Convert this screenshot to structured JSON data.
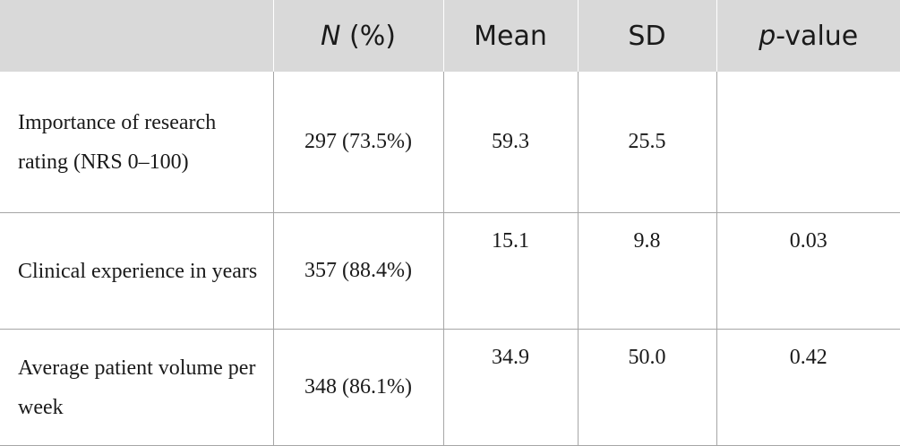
{
  "table": {
    "headers": {
      "col0": "",
      "col1_italic": "N",
      "col1_rest": " (%)",
      "col2": "Mean",
      "col3": "SD",
      "col4_italic": "p",
      "col4_rest": "-value"
    },
    "rows": [
      {
        "label": "Importance of research rating (NRS 0–100)",
        "n_pct": "297 (73.5%)",
        "mean": "59.3",
        "sd": "25.5",
        "p": ""
      },
      {
        "label": "Clinical experience in years",
        "n_pct": "357 (88.4%)",
        "mean": "15.1",
        "sd": "9.8",
        "p": "0.03"
      },
      {
        "label": "Average patient volume per week",
        "n_pct": "348 (86.1%)",
        "mean": "34.9",
        "sd": "50.0",
        "p": "0.42"
      }
    ]
  }
}
